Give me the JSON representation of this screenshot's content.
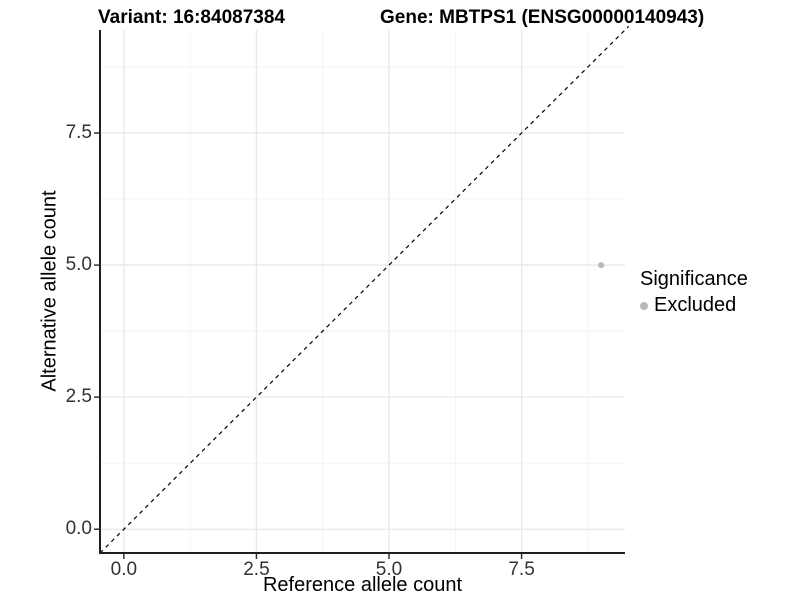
{
  "chart": {
    "title_left": "Variant: 16:84087384",
    "title_right": "Gene: MBTPS1 (ENSG00000140943)"
  },
  "chart_data": {
    "type": "scatter",
    "xlabel": "Reference allele count",
    "ylabel": "Alternative allele count",
    "xlim": [
      -0.45,
      9.45
    ],
    "ylim": [
      -0.45,
      9.45
    ],
    "x_ticks": [
      0,
      2.5,
      5,
      7.5
    ],
    "x_tick_labels": [
      "0.0",
      "2.5",
      "5.0",
      "7.5"
    ],
    "y_ticks": [
      0,
      2.5,
      5,
      7.5
    ],
    "y_tick_labels": [
      "0.0",
      "2.5",
      "5.0",
      "7.5"
    ],
    "x_minor_ticks": [
      1.25,
      3.75,
      6.25,
      8.75
    ],
    "y_minor_ticks": [
      1.25,
      3.75,
      6.25,
      8.75
    ],
    "grid": true,
    "points": [
      {
        "x": 9,
        "y": 5,
        "series": "Excluded"
      }
    ],
    "identity_line": {
      "style": "dashed",
      "from": [
        -0.45,
        -0.45
      ],
      "to": [
        9.52,
        9.52
      ]
    },
    "legend": {
      "title": "Significance",
      "position": "right",
      "items": [
        {
          "label": "Excluded",
          "color": "#b9b9b9"
        }
      ]
    },
    "colors": {
      "point": "#b9b9b9",
      "grid_major": "#e8e8e8",
      "grid_minor": "#f2f2f2",
      "axis_line": "#1f1f1f",
      "tick_mark": "#333333",
      "diagonal": "#000000"
    }
  }
}
